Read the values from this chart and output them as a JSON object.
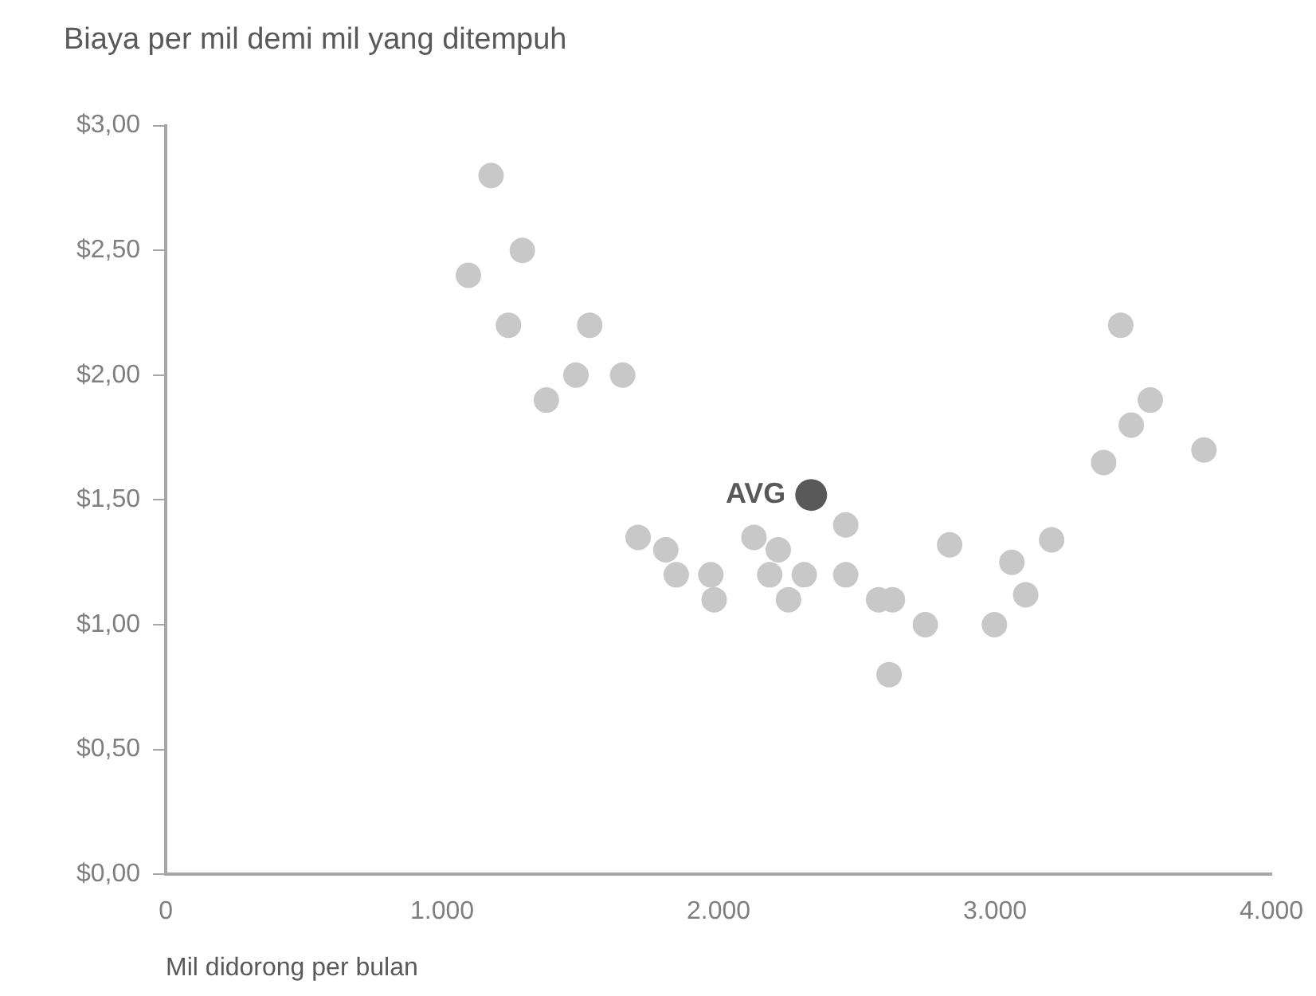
{
  "chart_data": {
    "type": "scatter",
    "title": "Biaya per mil demi mil yang ditempuh",
    "xlabel": "Mil didorong per bulan",
    "xlim": [
      0,
      4000
    ],
    "xticks": [
      0,
      {
        "value": 1000,
        "label": "1.000"
      },
      {
        "value": 2000,
        "label": "2.000"
      },
      {
        "value": 3000,
        "label": "3.000"
      },
      {
        "value": 4000,
        "label": "4.000"
      }
    ],
    "ylim": [
      0,
      3
    ],
    "yticks": [
      {
        "value": 0,
        "label": "$0,00"
      },
      {
        "value": 0.5,
        "label": "$0,50"
      },
      {
        "value": 1,
        "label": "$1,00"
      },
      {
        "value": 1.5,
        "label": "$1,50"
      },
      {
        "value": 2,
        "label": "$2,00"
      },
      {
        "value": 2.5,
        "label": "$2,50"
      },
      {
        "value": 3,
        "label": "$3,00"
      }
    ],
    "grid": false,
    "legend": false,
    "marker": "circle",
    "series": [
      {
        "color": "#c8c8c8",
        "x": [
          1095,
          1177,
          1240,
          1290,
          1377,
          1484,
          1534,
          1653,
          1709,
          1809,
          1847,
          1972,
          1984,
          2128,
          2216,
          2185,
          2310,
          2253,
          2460,
          2460,
          2579,
          2629,
          2748,
          2617,
          2836,
          2998,
          3061,
          3111,
          3205,
          3393,
          3493,
          3562,
          3455,
          3756
        ],
        "values": [
          2.4,
          2.8,
          2.2,
          2.5,
          1.9,
          2.0,
          2.2,
          2.0,
          1.35,
          1.3,
          1.2,
          1.2,
          1.1,
          1.35,
          1.3,
          1.2,
          1.2,
          1.1,
          1.4,
          1.2,
          1.1,
          1.1,
          1.0,
          0.8,
          1.32,
          1.0,
          1.25,
          1.12,
          1.34,
          1.65,
          1.8,
          1.9,
          2.2,
          1.7
        ]
      },
      {
        "name": "AVG",
        "color": "#595959",
        "x": [
          2335
        ],
        "values": [
          1.52
        ]
      }
    ]
  }
}
